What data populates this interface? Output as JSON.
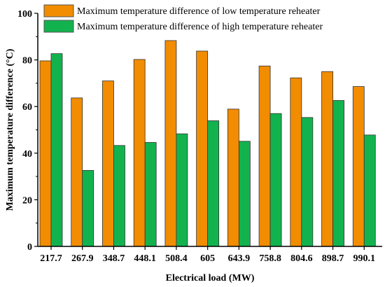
{
  "chart_data": {
    "type": "bar",
    "categories": [
      "217.7",
      "267.9",
      "348.7",
      "448.1",
      "508.4",
      "605",
      "643.9",
      "758.8",
      "804.6",
      "898.7",
      "990.1"
    ],
    "series": [
      {
        "name": "Maximum temperature difference of low temperature reheater",
        "color": "#F28C00",
        "values": [
          79.6,
          63.7,
          71.0,
          80.2,
          88.3,
          83.8,
          58.9,
          77.4,
          72.3,
          75.0,
          68.6
        ]
      },
      {
        "name": "Maximum temperature difference of high temperature reheater",
        "color": "#12B34E",
        "values": [
          82.7,
          32.6,
          43.3,
          44.6,
          48.3,
          53.9,
          45.1,
          57.0,
          55.3,
          62.6,
          47.8
        ]
      }
    ],
    "xlabel": "Electrical load (MW)",
    "ylabel": "Maximum temperature difference (°C)",
    "ylim": [
      0,
      100
    ],
    "yticks": [
      "0",
      "20",
      "40",
      "60",
      "80",
      "100"
    ],
    "legend_position": "top-right",
    "grid": false
  }
}
